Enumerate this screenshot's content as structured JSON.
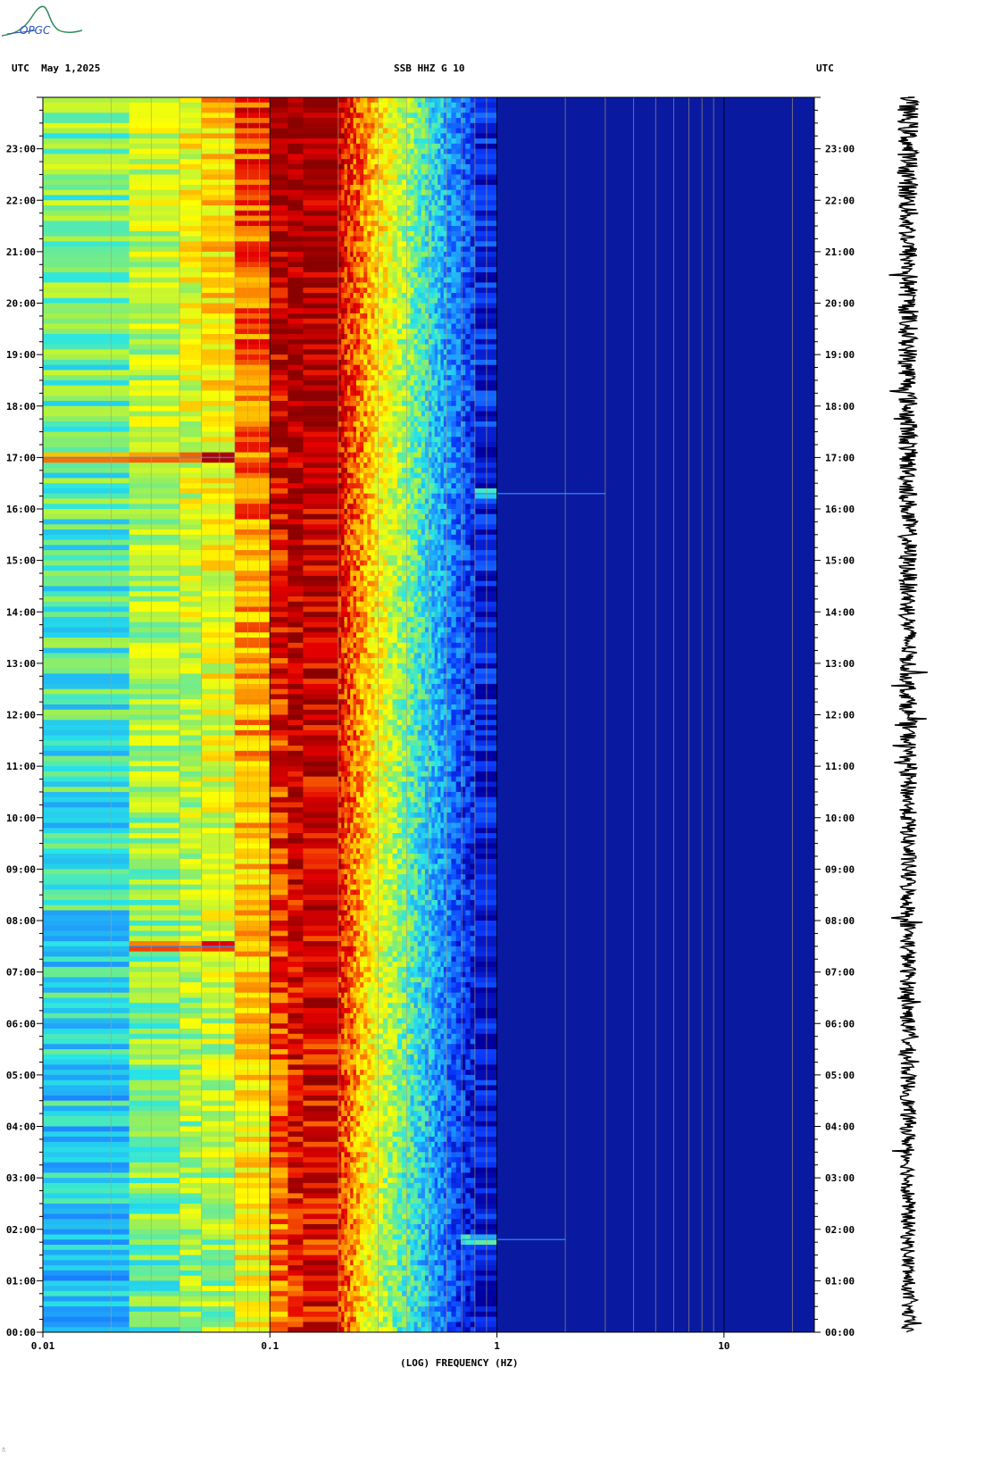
{
  "logo": {
    "text": "OPGC"
  },
  "header": {
    "left": "UTC  May 1,2025",
    "center": "SSB HHZ G 10",
    "right": "UTC"
  },
  "chart_data": {
    "type": "heatmap",
    "title": "SSB HHZ G 10",
    "date": "May 1,2025",
    "time_zone": "UTC",
    "xlabel": "(LOG) FREQUENCY (HZ)",
    "x_scale": "log",
    "xlim_hz": [
      0.01,
      25
    ],
    "x_tick_values": [
      0.01,
      0.1,
      1,
      10
    ],
    "x_tick_labels": [
      "0.01",
      "0.1",
      "1",
      "10"
    ],
    "ylim_hours": [
      0,
      24
    ],
    "y_tick_labels": [
      "00:00",
      "01:00",
      "02:00",
      "03:00",
      "04:00",
      "05:00",
      "06:00",
      "07:00",
      "08:00",
      "09:00",
      "10:00",
      "11:00",
      "12:00",
      "13:00",
      "14:00",
      "15:00",
      "16:00",
      "17:00",
      "18:00",
      "19:00",
      "20:00",
      "21:00",
      "22:00",
      "23:00"
    ],
    "colormap": [
      "#0000a0",
      "#0a3cff",
      "#1e90ff",
      "#28e6e6",
      "#a0f050",
      "#ffff00",
      "#ff9900",
      "#e60000",
      "#8b0000"
    ],
    "background_color": "#0a1aa0",
    "frequency_band_hz": [
      0.01,
      0.024,
      0.04,
      0.05,
      0.07,
      0.1,
      0.12,
      0.14,
      0.2,
      0.24,
      0.3,
      0.4,
      0.5,
      0.6,
      0.8,
      1,
      2,
      3,
      5,
      10,
      25
    ],
    "band_energy_profile": [
      {
        "freq_hz": 0.01,
        "level_start": 0.2,
        "level_end": 0.42
      },
      {
        "freq_hz": 0.024,
        "level_start": 0.42,
        "level_end": 0.55
      },
      {
        "freq_hz": 0.04,
        "level_start": 0.48,
        "level_end": 0.58
      },
      {
        "freq_hz": 0.05,
        "level_start": 0.5,
        "level_end": 0.65
      },
      {
        "freq_hz": 0.07,
        "level_start": 0.5,
        "level_end": 0.72
      },
      {
        "freq_hz": 0.1,
        "level_start": 0.7,
        "level_end": 0.95
      },
      {
        "freq_hz": 0.14,
        "level_start": 0.9,
        "level_end": 1.0
      },
      {
        "freq_hz": 0.2,
        "level_start": 0.85,
        "level_end": 0.92
      },
      {
        "freq_hz": 0.3,
        "level_start": 0.55,
        "level_end": 0.68
      },
      {
        "freq_hz": 0.45,
        "level_start": 0.35,
        "level_end": 0.45
      },
      {
        "freq_hz": 0.7,
        "level_start": 0.1,
        "level_end": 0.2
      },
      {
        "freq_hz": 1,
        "level_start": 0.02,
        "level_end": 0.05
      },
      {
        "freq_hz": 25,
        "level_start": 0.0,
        "level_end": 0.0
      }
    ],
    "notable_events": [
      {
        "time_hours": 16.3,
        "freq_hz_range": [
          0.8,
          3
        ]
      },
      {
        "time_hours": 1.8,
        "freq_hz_range": [
          0.7,
          2
        ]
      },
      {
        "time_hours": 17.0,
        "freq_hz_range": [
          0.01,
          0.07
        ]
      },
      {
        "time_hours": 7.5,
        "freq_hz_range": [
          0.024,
          0.07
        ]
      }
    ]
  }
}
